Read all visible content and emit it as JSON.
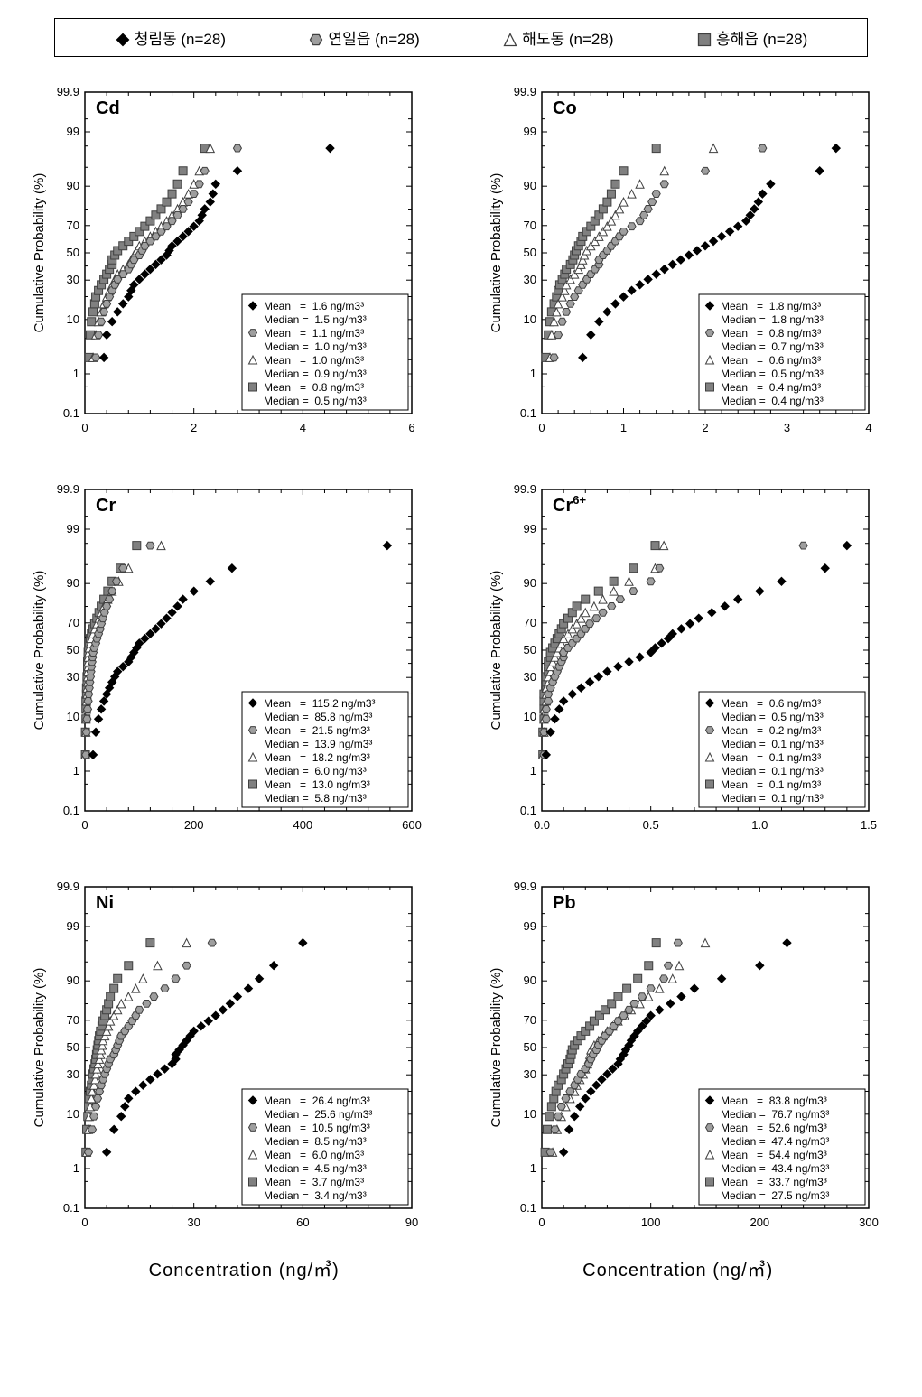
{
  "legend": {
    "items": [
      {
        "label": "청림동 (n=28)",
        "marker": "diamond",
        "fill": "#000000",
        "stroke": "#000000"
      },
      {
        "label": "연일읍 (n=28)",
        "marker": "hex",
        "fill": "#9e9e9e",
        "stroke": "#404040"
      },
      {
        "label": "해도동 (n=28)",
        "marker": "triangle",
        "fill": "#ffffff",
        "stroke": "#404040"
      },
      {
        "label": "흥해읍 (n=28)",
        "marker": "square",
        "fill": "#808080",
        "stroke": "#404040"
      }
    ]
  },
  "axis": {
    "ylabel": "Cumulative Probability (%)",
    "yticks": [
      0.1,
      1,
      10,
      30,
      50,
      70,
      90,
      99,
      99.9
    ],
    "ytick_labels": [
      "0.1",
      "1",
      "10",
      "30",
      "50",
      "70",
      "90",
      "99",
      "99.9"
    ],
    "xlabel": "Concentration (ng/㎥)",
    "label_fontsize": 15,
    "tick_fontsize": 13
  },
  "style": {
    "bg": "#ffffff",
    "frame": "#000000",
    "tick_color": "#000000",
    "title_fontsize": 20,
    "title_weight": "bold",
    "stat_fontsize": 12,
    "stat_box_stroke": "#000000",
    "marker_size": 9
  },
  "panels": [
    {
      "title": "Cd",
      "xlim": [
        0,
        6
      ],
      "xticks": [
        0,
        2,
        4,
        6
      ],
      "stats": [
        {
          "marker": 0,
          "mean": "1.6 ng/m3³",
          "median": "1.5 ng/m3³"
        },
        {
          "marker": 1,
          "mean": "1.1 ng/m3³",
          "median": "1.0 ng/m3³"
        },
        {
          "marker": 2,
          "mean": "1.0 ng/m3³",
          "median": "0.9 ng/m3³"
        },
        {
          "marker": 3,
          "mean": "0.8 ng/m3³",
          "median": "0.5 ng/m3³"
        }
      ],
      "series": [
        {
          "marker": 0,
          "x": [
            0.35,
            0.4,
            0.5,
            0.6,
            0.7,
            0.8,
            0.85,
            0.9,
            1.0,
            1.1,
            1.2,
            1.3,
            1.4,
            1.5,
            1.55,
            1.6,
            1.7,
            1.8,
            1.9,
            2.0,
            2.1,
            2.15,
            2.2,
            2.3,
            2.35,
            2.4,
            2.8,
            4.5
          ]
        },
        {
          "marker": 1,
          "x": [
            0.2,
            0.25,
            0.3,
            0.35,
            0.4,
            0.45,
            0.5,
            0.55,
            0.6,
            0.7,
            0.8,
            0.85,
            0.9,
            1.0,
            1.05,
            1.1,
            1.2,
            1.3,
            1.4,
            1.5,
            1.6,
            1.7,
            1.8,
            1.9,
            2.0,
            2.1,
            2.2,
            2.8
          ]
        },
        {
          "marker": 2,
          "x": [
            0.15,
            0.2,
            0.25,
            0.3,
            0.35,
            0.4,
            0.45,
            0.5,
            0.55,
            0.6,
            0.7,
            0.8,
            0.85,
            0.9,
            0.95,
            1.0,
            1.1,
            1.2,
            1.3,
            1.4,
            1.5,
            1.6,
            1.7,
            1.8,
            1.9,
            2.0,
            2.1,
            2.3
          ]
        },
        {
          "marker": 3,
          "x": [
            0.08,
            0.1,
            0.12,
            0.15,
            0.18,
            0.2,
            0.25,
            0.3,
            0.35,
            0.4,
            0.45,
            0.5,
            0.5,
            0.55,
            0.6,
            0.7,
            0.8,
            0.9,
            1.0,
            1.1,
            1.2,
            1.3,
            1.4,
            1.5,
            1.6,
            1.7,
            1.8,
            2.2
          ]
        }
      ]
    },
    {
      "title": "Co",
      "xlim": [
        0,
        4
      ],
      "xticks": [
        0,
        1,
        2,
        3,
        4
      ],
      "stats": [
        {
          "marker": 0,
          "mean": "1.8 ng/m3³",
          "median": "1.8 ng/m3³"
        },
        {
          "marker": 1,
          "mean": "0.8 ng/m3³",
          "median": "0.7 ng/m3³"
        },
        {
          "marker": 2,
          "mean": "0.6 ng/m3³",
          "median": "0.5 ng/m3³"
        },
        {
          "marker": 3,
          "mean": "0.4 ng/m3³",
          "median": "0.4 ng/m3³"
        }
      ],
      "series": [
        {
          "marker": 0,
          "x": [
            0.5,
            0.6,
            0.7,
            0.8,
            0.9,
            1.0,
            1.1,
            1.2,
            1.3,
            1.4,
            1.5,
            1.6,
            1.7,
            1.8,
            1.9,
            2.0,
            2.1,
            2.2,
            2.3,
            2.4,
            2.5,
            2.55,
            2.6,
            2.65,
            2.7,
            2.8,
            3.4,
            3.6
          ]
        },
        {
          "marker": 1,
          "x": [
            0.15,
            0.2,
            0.25,
            0.3,
            0.35,
            0.4,
            0.45,
            0.5,
            0.55,
            0.6,
            0.65,
            0.7,
            0.7,
            0.75,
            0.8,
            0.85,
            0.9,
            0.95,
            1.0,
            1.1,
            1.2,
            1.25,
            1.3,
            1.35,
            1.4,
            1.5,
            2.0,
            2.7
          ]
        },
        {
          "marker": 2,
          "x": [
            0.1,
            0.12,
            0.15,
            0.18,
            0.2,
            0.25,
            0.28,
            0.3,
            0.35,
            0.4,
            0.45,
            0.48,
            0.5,
            0.52,
            0.55,
            0.6,
            0.65,
            0.7,
            0.75,
            0.8,
            0.85,
            0.9,
            0.95,
            1.0,
            1.1,
            1.2,
            1.5,
            2.1
          ]
        },
        {
          "marker": 3,
          "x": [
            0.05,
            0.08,
            0.1,
            0.12,
            0.15,
            0.18,
            0.2,
            0.22,
            0.25,
            0.28,
            0.3,
            0.35,
            0.38,
            0.4,
            0.42,
            0.45,
            0.48,
            0.5,
            0.55,
            0.6,
            0.65,
            0.7,
            0.75,
            0.8,
            0.85,
            0.9,
            1.0,
            1.4
          ]
        }
      ]
    },
    {
      "title": "Cr",
      "xlim": [
        0,
        600
      ],
      "xticks": [
        0,
        200,
        400,
        600
      ],
      "stats": [
        {
          "marker": 0,
          "mean": "115.2 ng/m3³",
          "median": "85.8 ng/m3³"
        },
        {
          "marker": 1,
          "mean": "21.5 ng/m3³",
          "median": "13.9 ng/m3³"
        },
        {
          "marker": 2,
          "mean": "18.2 ng/m3³",
          "median": "6.0 ng/m3³"
        },
        {
          "marker": 3,
          "mean": "13.0 ng/m3³",
          "median": "5.8 ng/m3³"
        }
      ],
      "series": [
        {
          "marker": 0,
          "x": [
            15,
            20,
            25,
            30,
            35,
            40,
            45,
            50,
            55,
            60,
            70,
            80,
            85,
            90,
            95,
            100,
            110,
            120,
            130,
            140,
            150,
            160,
            170,
            180,
            200,
            230,
            270,
            555
          ]
        },
        {
          "marker": 1,
          "x": [
            2,
            3,
            4,
            5,
            6,
            7,
            8,
            9,
            10,
            11,
            12,
            13,
            14,
            15,
            17,
            20,
            22,
            25,
            28,
            30,
            33,
            36,
            40,
            45,
            50,
            58,
            70,
            120
          ]
        },
        {
          "marker": 2,
          "x": [
            1,
            2,
            2,
            3,
            3,
            4,
            4,
            5,
            5,
            5,
            6,
            6,
            6,
            7,
            8,
            10,
            12,
            15,
            18,
            22,
            26,
            30,
            35,
            42,
            50,
            62,
            80,
            140
          ]
        },
        {
          "marker": 3,
          "x": [
            1,
            1,
            2,
            2,
            2,
            3,
            3,
            4,
            4,
            5,
            5,
            5,
            6,
            6,
            7,
            8,
            10,
            12,
            15,
            18,
            22,
            26,
            30,
            35,
            42,
            50,
            65,
            95
          ]
        }
      ]
    },
    {
      "title": "Cr⁶⁺",
      "title_html": true,
      "xlim": [
        0,
        1.5
      ],
      "xticks": [
        0.0,
        0.5,
        1.0,
        1.5
      ],
      "xtick_labels": [
        "0.0",
        "0.5",
        "1.0",
        "1.5"
      ],
      "stats": [
        {
          "marker": 0,
          "mean": "0.6 ng/m3³",
          "median": "0.5 ng/m3³"
        },
        {
          "marker": 1,
          "mean": "0.2 ng/m3³",
          "median": "0.1 ng/m3³"
        },
        {
          "marker": 2,
          "mean": "0.1 ng/m3³",
          "median": "0.1 ng/m3³"
        },
        {
          "marker": 3,
          "mean": "0.1 ng/m3³",
          "median": "0.1 ng/m3³"
        }
      ],
      "series": [
        {
          "marker": 0,
          "x": [
            0.02,
            0.04,
            0.06,
            0.08,
            0.1,
            0.14,
            0.18,
            0.22,
            0.26,
            0.3,
            0.35,
            0.4,
            0.45,
            0.5,
            0.52,
            0.55,
            0.58,
            0.6,
            0.64,
            0.68,
            0.72,
            0.78,
            0.84,
            0.9,
            1.0,
            1.1,
            1.3,
            1.4
          ]
        },
        {
          "marker": 1,
          "x": [
            0.01,
            0.01,
            0.02,
            0.02,
            0.03,
            0.03,
            0.04,
            0.05,
            0.06,
            0.07,
            0.08,
            0.09,
            0.1,
            0.1,
            0.12,
            0.14,
            0.16,
            0.18,
            0.2,
            0.22,
            0.25,
            0.28,
            0.32,
            0.36,
            0.42,
            0.5,
            0.54,
            1.2
          ]
        },
        {
          "marker": 2,
          "x": [
            0.005,
            0.01,
            0.01,
            0.01,
            0.02,
            0.02,
            0.02,
            0.03,
            0.03,
            0.04,
            0.04,
            0.05,
            0.06,
            0.07,
            0.08,
            0.09,
            0.1,
            0.12,
            0.14,
            0.16,
            0.18,
            0.2,
            0.24,
            0.28,
            0.33,
            0.4,
            0.52,
            0.56
          ]
        },
        {
          "marker": 3,
          "x": [
            0.005,
            0.005,
            0.01,
            0.01,
            0.01,
            0.01,
            0.02,
            0.02,
            0.02,
            0.03,
            0.03,
            0.03,
            0.04,
            0.04,
            0.05,
            0.06,
            0.07,
            0.08,
            0.09,
            0.1,
            0.12,
            0.14,
            0.16,
            0.2,
            0.26,
            0.33,
            0.42,
            0.52
          ]
        }
      ]
    },
    {
      "title": "Ni",
      "xlim": [
        0,
        90
      ],
      "xticks": [
        0,
        30,
        60,
        90
      ],
      "stats": [
        {
          "marker": 0,
          "mean": "26.4 ng/m3³",
          "median": "25.6 ng/m3³"
        },
        {
          "marker": 1,
          "mean": "10.5 ng/m3³",
          "median": "8.5 ng/m3³"
        },
        {
          "marker": 2,
          "mean": "6.0 ng/m3³",
          "median": "4.5 ng/m3³"
        },
        {
          "marker": 3,
          "mean": "3.7 ng/m3³",
          "median": "3.4 ng/m3³"
        }
      ],
      "series": [
        {
          "marker": 0,
          "x": [
            6,
            8,
            10,
            11,
            12,
            14,
            16,
            18,
            20,
            22,
            24,
            25,
            25,
            26,
            27,
            28,
            29,
            30,
            32,
            34,
            36,
            38,
            40,
            42,
            45,
            48,
            52,
            60
          ]
        },
        {
          "marker": 1,
          "x": [
            1,
            2,
            2.5,
            3,
            3.5,
            4,
            4.5,
            5,
            5.5,
            6,
            6.5,
            7,
            8,
            8.5,
            9,
            9.5,
            10,
            11,
            12,
            13,
            14,
            15,
            17,
            19,
            22,
            25,
            28,
            35
          ]
        },
        {
          "marker": 2,
          "x": [
            0.5,
            1,
            1.2,
            1.5,
            1.8,
            2,
            2.5,
            2.8,
            3,
            3.3,
            3.6,
            4,
            4.3,
            4.5,
            4.8,
            5,
            5.5,
            6,
            6.5,
            7,
            8,
            9,
            10,
            12,
            14,
            16,
            20,
            28
          ]
        },
        {
          "marker": 3,
          "x": [
            0.3,
            0.5,
            0.8,
            1,
            1.2,
            1.5,
            1.8,
            2,
            2.2,
            2.5,
            2.8,
            3,
            3.2,
            3.4,
            3.6,
            3.8,
            4,
            4.3,
            4.7,
            5,
            5.5,
            6,
            6.5,
            7,
            8,
            9,
            12,
            18
          ]
        }
      ]
    },
    {
      "title": "Pb",
      "xlim": [
        0,
        300
      ],
      "xticks": [
        0,
        100,
        200,
        300
      ],
      "stats": [
        {
          "marker": 0,
          "mean": "83.8 ng/m3³",
          "median": "76.7 ng/m3³"
        },
        {
          "marker": 1,
          "mean": "52.6 ng/m3³",
          "median": "47.4 ng/m3³"
        },
        {
          "marker": 2,
          "mean": "54.4 ng/m3³",
          "median": "43.4 ng/m3³"
        },
        {
          "marker": 3,
          "mean": "33.7 ng/m3³",
          "median": "27.5 ng/m3³"
        }
      ],
      "series": [
        {
          "marker": 0,
          "x": [
            20,
            25,
            30,
            35,
            40,
            45,
            50,
            55,
            60,
            65,
            70,
            72,
            75,
            77,
            80,
            82,
            85,
            88,
            92,
            96,
            100,
            108,
            118,
            128,
            140,
            165,
            200,
            225
          ]
        },
        {
          "marker": 1,
          "x": [
            8,
            12,
            15,
            18,
            22,
            26,
            30,
            33,
            36,
            40,
            43,
            45,
            47,
            50,
            52,
            55,
            58,
            62,
            66,
            70,
            75,
            80,
            85,
            92,
            100,
            112,
            116,
            125
          ]
        },
        {
          "marker": 2,
          "x": [
            10,
            14,
            18,
            22,
            26,
            30,
            32,
            35,
            38,
            40,
            42,
            43,
            44,
            45,
            48,
            52,
            56,
            60,
            65,
            70,
            76,
            82,
            90,
            98,
            108,
            120,
            126,
            150
          ]
        },
        {
          "marker": 3,
          "x": [
            3,
            5,
            7,
            9,
            11,
            13,
            15,
            18,
            20,
            22,
            24,
            26,
            27,
            28,
            30,
            33,
            36,
            40,
            44,
            48,
            53,
            58,
            64,
            70,
            78,
            88,
            98,
            105
          ]
        }
      ]
    }
  ]
}
